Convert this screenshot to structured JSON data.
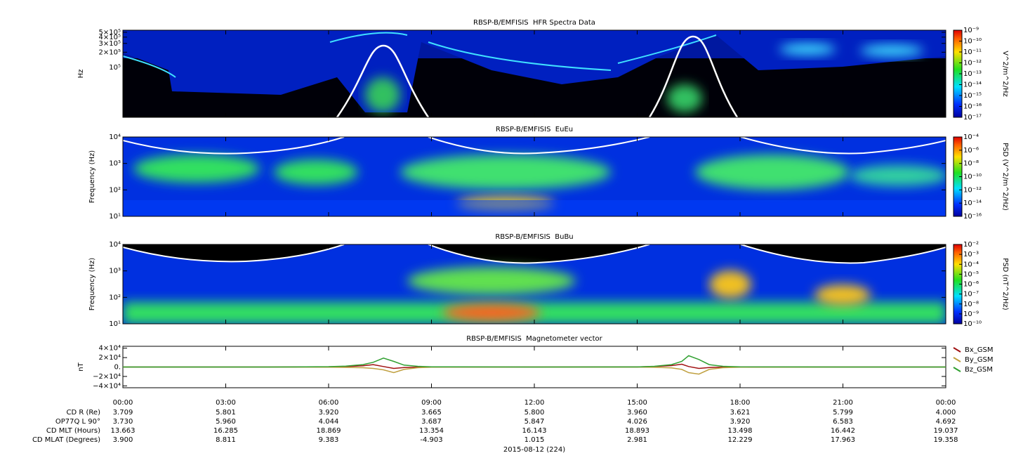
{
  "chart_data": [
    {
      "type": "spectrogram",
      "title": "RBSP-B/EMFISIS  HFR Spectra Data",
      "ylabel": "Hz",
      "log_y": true,
      "ylim": [
        10000,
        550000
      ],
      "yticks": [
        {
          "value": 500000,
          "label": "5×10⁵"
        },
        {
          "value": 400000,
          "label": "4×10⁵"
        },
        {
          "value": 300000,
          "label": "3×10⁵"
        },
        {
          "value": 200000,
          "label": "2×10⁵"
        },
        {
          "value": 100000,
          "label": "10⁵"
        }
      ],
      "xlim": [
        0,
        24
      ],
      "xticks": [
        0,
        3,
        6,
        9,
        12,
        15,
        18,
        21,
        24
      ],
      "colorbar": {
        "label": "V^2/m^2/Hz",
        "log": true,
        "lim": [
          1e-17,
          1e-09
        ],
        "ticks": [
          {
            "value": 1e-09,
            "label": "10⁻⁹"
          },
          {
            "value": 1e-10,
            "label": "10⁻¹⁰"
          },
          {
            "value": 1e-11,
            "label": "10⁻¹¹"
          },
          {
            "value": 1e-12,
            "label": "10⁻¹²"
          },
          {
            "value": 1e-13,
            "label": "10⁻¹³"
          },
          {
            "value": 1e-14,
            "label": "10⁻¹⁴"
          },
          {
            "value": 1e-15,
            "label": "10⁻¹⁵"
          },
          {
            "value": 1e-16,
            "label": "10⁻¹⁶"
          },
          {
            "value": 1e-17,
            "label": "10⁻¹⁷"
          }
        ]
      }
    },
    {
      "type": "spectrogram",
      "title": "RBSP-B/EMFISIS  EuEu",
      "ylabel": "Frequency (Hz)",
      "log_y": true,
      "ylim": [
        10,
        10000
      ],
      "yticks": [
        {
          "value": 10,
          "label": "10¹"
        },
        {
          "value": 100,
          "label": "10²"
        },
        {
          "value": 1000,
          "label": "10³"
        },
        {
          "value": 10000,
          "label": "10⁴"
        }
      ],
      "xlim": [
        0,
        24
      ],
      "xticks": [
        0,
        3,
        6,
        9,
        12,
        15,
        18,
        21,
        24
      ],
      "colorbar": {
        "label": "PSD (V^2/m^2/Hz)",
        "log": true,
        "lim": [
          1e-16,
          0.0001
        ],
        "ticks": [
          {
            "value": 0.0001,
            "label": "10⁻⁴"
          },
          {
            "value": 1e-06,
            "label": "10⁻⁶"
          },
          {
            "value": 1e-08,
            "label": "10⁻⁸"
          },
          {
            "value": 1e-10,
            "label": "10⁻¹⁰"
          },
          {
            "value": 1e-12,
            "label": "10⁻¹²"
          },
          {
            "value": 1e-14,
            "label": "10⁻¹⁴"
          },
          {
            "value": 1e-16,
            "label": "10⁻¹⁶"
          }
        ]
      }
    },
    {
      "type": "spectrogram",
      "title": "RBSP-B/EMFISIS  BuBu",
      "ylabel": "Frequency (Hz)",
      "log_y": true,
      "ylim": [
        10,
        10000
      ],
      "yticks": [
        {
          "value": 10,
          "label": "10¹"
        },
        {
          "value": 100,
          "label": "10²"
        },
        {
          "value": 1000,
          "label": "10³"
        },
        {
          "value": 10000,
          "label": "10⁴"
        }
      ],
      "xlim": [
        0,
        24
      ],
      "xticks": [
        0,
        3,
        6,
        9,
        12,
        15,
        18,
        21,
        24
      ],
      "colorbar": {
        "label": "PSD (nT^2/Hz)",
        "log": true,
        "lim": [
          1e-10,
          0.01
        ],
        "ticks": [
          {
            "value": 0.01,
            "label": "10⁻²"
          },
          {
            "value": 0.001,
            "label": "10⁻³"
          },
          {
            "value": 0.0001,
            "label": "10⁻⁴"
          },
          {
            "value": 1e-05,
            "label": "10⁻⁵"
          },
          {
            "value": 1e-06,
            "label": "10⁻⁶"
          },
          {
            "value": 1e-07,
            "label": "10⁻⁷"
          },
          {
            "value": 1e-08,
            "label": "10⁻⁸"
          },
          {
            "value": 1e-09,
            "label": "10⁻⁹"
          },
          {
            "value": 1e-10,
            "label": "10⁻¹⁰"
          }
        ]
      }
    },
    {
      "type": "line",
      "title": "RBSP-B/EMFISIS  Magnetometer vector",
      "ylabel": "nT",
      "ylim": [
        -44000,
        44000
      ],
      "yticks": [
        {
          "value": 40000,
          "label": "4×10⁴"
        },
        {
          "value": 20000,
          "label": "2×10⁴"
        },
        {
          "value": 0,
          "label": "0."
        },
        {
          "value": -20000,
          "label": "−2×10⁴"
        },
        {
          "value": -40000,
          "label": "−4×10⁴"
        }
      ],
      "xlim": [
        0,
        24
      ],
      "xticks": [
        {
          "value": 0,
          "label": "00:00"
        },
        {
          "value": 3,
          "label": "03:00"
        },
        {
          "value": 6,
          "label": "06:00"
        },
        {
          "value": 9,
          "label": "09:00"
        },
        {
          "value": 12,
          "label": "12:00"
        },
        {
          "value": 15,
          "label": "15:00"
        },
        {
          "value": 18,
          "label": "18:00"
        },
        {
          "value": 21,
          "label": "21:00"
        },
        {
          "value": 24,
          "label": "00:00"
        }
      ],
      "legend": "right",
      "x": [
        0,
        3,
        5,
        6,
        6.5,
        7,
        7.3,
        7.6,
        7.9,
        8.2,
        8.6,
        9,
        12,
        15,
        15.5,
        16,
        16.3,
        16.5,
        16.8,
        17.1,
        17.5,
        18,
        21,
        24
      ],
      "series": [
        {
          "name": "Bx_GSM",
          "color": "#a01010",
          "values": [
            0,
            0,
            100,
            500,
            1000,
            2500,
            5000,
            1000,
            -3000,
            -1000,
            -300,
            0,
            0,
            200,
            1000,
            3000,
            6000,
            1000,
            -3000,
            -1000,
            -300,
            0,
            0,
            0
          ]
        },
        {
          "name": "By_GSM",
          "color": "#c0a040",
          "values": [
            0,
            0,
            -100,
            -300,
            -700,
            -1500,
            -3000,
            -6000,
            -12000,
            -5000,
            -1500,
            -300,
            0,
            -100,
            -600,
            -2000,
            -5000,
            -12000,
            -15000,
            -5000,
            -1500,
            -300,
            0,
            0
          ]
        },
        {
          "name": "Bz_GSM",
          "color": "#30a030",
          "values": [
            0,
            0,
            200,
            800,
            2000,
            5000,
            10000,
            19000,
            12000,
            4000,
            1500,
            500,
            0,
            200,
            1500,
            5000,
            12000,
            24000,
            16000,
            5000,
            1500,
            500,
            0,
            0
          ]
        }
      ]
    }
  ],
  "ephemeris": {
    "rows": [
      {
        "label": "CD R (Re)",
        "values": [
          "3.709",
          "5.801",
          "3.920",
          "3.665",
          "5.800",
          "3.960",
          "3.621",
          "5.799",
          "4.000"
        ]
      },
      {
        "label": "OP77Q L 90°",
        "values": [
          "3.730",
          "5.960",
          "4.044",
          "3.687",
          "5.847",
          "4.026",
          "3.920",
          "6.583",
          "4.692"
        ]
      },
      {
        "label": "CD MLT (Hours)",
        "values": [
          "13.663",
          "16.285",
          "18.869",
          "13.354",
          "16.143",
          "18.893",
          "13.498",
          "16.442",
          "19.037"
        ]
      },
      {
        "label": "CD MLAT (Degrees)",
        "values": [
          "3.900",
          "8.811",
          "9.383",
          "-4.903",
          "1.015",
          "2.981",
          "12.229",
          "17.963",
          "19.358"
        ]
      }
    ],
    "date": "2015-08-12 (224)"
  }
}
